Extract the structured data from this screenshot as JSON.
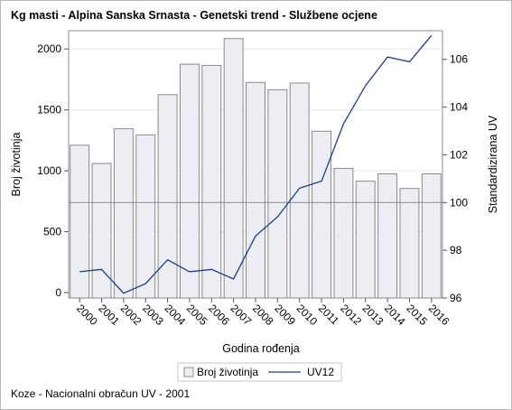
{
  "chart_data": {
    "type": "bar-line",
    "title": "Kg masti - Alpina Sanska Srnasta - Genetski trend - Službene ocjene",
    "xlabel": "Godina rođenja",
    "ylabel_left": "Broj životinja",
    "ylabel_right": "Standardizirana UV",
    "categories": [
      "2000",
      "2001",
      "2002",
      "2003",
      "2004",
      "2005",
      "2006",
      "2007",
      "2008",
      "2009",
      "2010",
      "2011",
      "2012",
      "2013",
      "2014",
      "2015",
      "2016"
    ],
    "series": [
      {
        "name": "Broj životinja",
        "type": "bar",
        "axis": "left",
        "values": [
          1210,
          1060,
          1345,
          1295,
          1625,
          1875,
          1865,
          2085,
          1725,
          1665,
          1720,
          1325,
          1020,
          915,
          975,
          855,
          975
        ],
        "color": "#eceef4",
        "stroke": "#8a8a8a"
      },
      {
        "name": "UV12",
        "type": "line",
        "axis": "right",
        "values": [
          97.1,
          97.2,
          96.2,
          96.6,
          97.6,
          97.1,
          97.2,
          96.8,
          98.6,
          99.4,
          100.6,
          100.9,
          103.3,
          104.9,
          106.1,
          105.9,
          107.0
        ],
        "color": "#1a3a8c"
      }
    ],
    "ylim_left": [
      0,
      2150
    ],
    "yticks_left": [
      0,
      500,
      1000,
      1500,
      2000
    ],
    "ylim_right": [
      96,
      107.2
    ],
    "yticks_right": [
      96,
      98,
      100,
      102,
      104,
      106
    ],
    "reference_line_right": 100,
    "grid": true,
    "legend": {
      "position": "bottom",
      "entries": [
        "Broj životinja",
        "UV12"
      ]
    }
  },
  "footnote": "Koze - Nacionalni obračun UV - 2001"
}
